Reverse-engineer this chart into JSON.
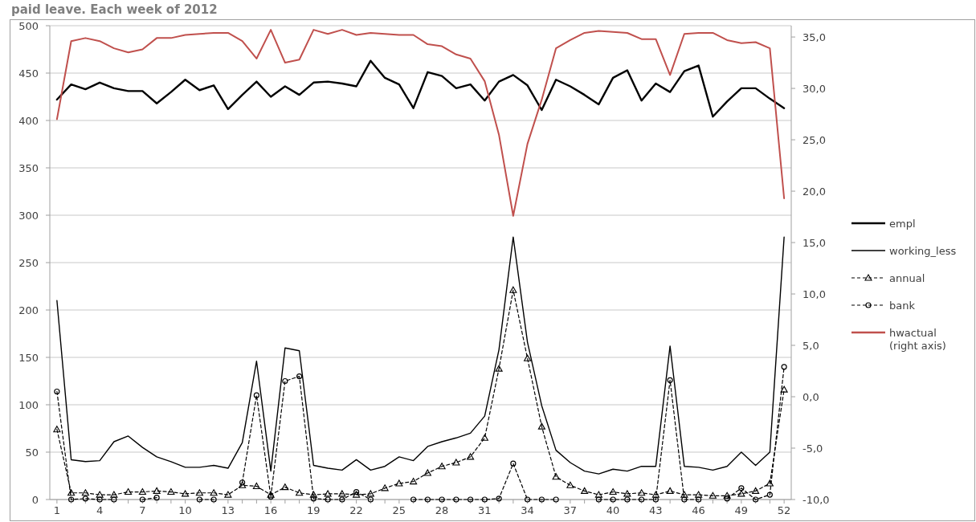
{
  "chart_data": {
    "type": "line",
    "title": "paid leave. Each week of 2012",
    "categories": [
      "1",
      null,
      null,
      "4",
      null,
      null,
      "7",
      null,
      null,
      "10",
      null,
      null,
      "13",
      null,
      null,
      "16",
      null,
      null,
      "19",
      null,
      null,
      "22",
      null,
      null,
      "25",
      null,
      null,
      "28",
      null,
      null,
      "31",
      null,
      null,
      "34",
      null,
      null,
      "37",
      null,
      null,
      "40",
      null,
      null,
      "43",
      null,
      null,
      "46",
      null,
      null,
      "49",
      null,
      null,
      "52"
    ],
    "ylim": [
      0,
      500
    ],
    "yticks": [
      0,
      50,
      100,
      150,
      200,
      250,
      300,
      350,
      400,
      450,
      500
    ],
    "y2lim": [
      -10,
      36.1
    ],
    "y2ticks": [
      {
        "value": -10,
        "label": "-10,0"
      },
      {
        "value": -5,
        "label": "-5,0"
      },
      {
        "value": 0,
        "label": "0,0"
      },
      {
        "value": 5,
        "label": "5,0"
      },
      {
        "value": 10,
        "label": "10,0"
      },
      {
        "value": 15,
        "label": "15,0"
      },
      {
        "value": 20,
        "label": "20,0"
      },
      {
        "value": 25,
        "label": "25,0"
      },
      {
        "value": 30,
        "label": "30,0"
      },
      {
        "value": 35,
        "label": "35,0"
      }
    ],
    "grid": "y",
    "legend": "right",
    "series": [
      {
        "name": "empl",
        "color": "#000000",
        "marker": "none",
        "line_style": "solid",
        "values": [
          422,
          438,
          433,
          440,
          434,
          431,
          431,
          418,
          430,
          443,
          432,
          437,
          412,
          427,
          441,
          425,
          436,
          427,
          440,
          441,
          439,
          436,
          463,
          445,
          438,
          413,
          451,
          447,
          434,
          438,
          421,
          441,
          448,
          437,
          411,
          443,
          436,
          427,
          417,
          445,
          453,
          421,
          439,
          430,
          452,
          458,
          404,
          420,
          434,
          434,
          423,
          413
        ]
      },
      {
        "name": "working_less",
        "color": "#000000",
        "marker": "none",
        "line_style": "solid",
        "values": [
          210,
          42,
          40,
          41,
          61,
          67,
          55,
          45,
          40,
          34,
          34,
          36,
          33,
          60,
          146,
          30,
          160,
          157,
          36,
          33,
          31,
          42,
          31,
          35,
          45,
          41,
          56,
          61,
          65,
          70,
          88,
          158,
          277,
          166,
          99,
          52,
          39,
          30,
          27,
          32,
          30,
          35,
          35,
          162,
          35,
          34,
          31,
          35,
          50,
          36,
          50,
          277
        ]
      },
      {
        "name": "annual",
        "color": "#000000",
        "marker": "triangle",
        "line_style": "dashed",
        "values": [
          74,
          7,
          7,
          5,
          5,
          8,
          8,
          9,
          8,
          6,
          7,
          7,
          5,
          15,
          14,
          5,
          13,
          7,
          5,
          6,
          6,
          5,
          6,
          12,
          17,
          19,
          28,
          35,
          39,
          45,
          65,
          138,
          221,
          149,
          77,
          24,
          15,
          9,
          5,
          8,
          6,
          7,
          5,
          9,
          5,
          5,
          4,
          4,
          6,
          9,
          17,
          116
        ]
      },
      {
        "name": "bank",
        "color": "#000000",
        "marker": "circle",
        "line_style": "dashed",
        "values": [
          114,
          0,
          1,
          0,
          0,
          null,
          0,
          2,
          null,
          null,
          0,
          0,
          null,
          18,
          110,
          3,
          125,
          130,
          1,
          0,
          0,
          8,
          0,
          null,
          null,
          0,
          0,
          0,
          0,
          0,
          0,
          1,
          38,
          0,
          0,
          0,
          null,
          null,
          0,
          0,
          0,
          0,
          0,
          126,
          0,
          0,
          null,
          1,
          12,
          0,
          5,
          140
        ]
      },
      {
        "name": "hwactual (right axis)",
        "color": "#c0504d",
        "axis": "y2",
        "marker": "none",
        "line_style": "solid",
        "values": [
          27.0,
          34.6,
          34.9,
          34.6,
          33.9,
          33.5,
          33.8,
          34.9,
          34.9,
          35.2,
          35.3,
          35.4,
          35.4,
          34.6,
          32.9,
          35.7,
          32.5,
          32.8,
          35.7,
          35.3,
          35.7,
          35.2,
          35.4,
          35.3,
          35.2,
          35.2,
          34.3,
          34.1,
          33.3,
          32.9,
          30.7,
          25.5,
          17.6,
          24.6,
          28.9,
          33.9,
          34.7,
          35.4,
          35.6,
          35.5,
          35.4,
          34.8,
          34.8,
          31.3,
          35.3,
          35.4,
          35.4,
          34.7,
          34.4,
          34.5,
          33.9,
          19.3
        ]
      }
    ]
  }
}
